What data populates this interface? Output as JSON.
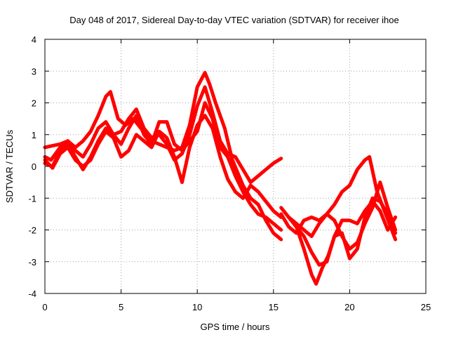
{
  "chart_data": {
    "type": "line",
    "title": "Day 048 of 2017, Sidereal Day-to-day VTEC variation (SDTVAR) for receiver ihoe",
    "xlabel": "GPS time / hours",
    "ylabel": "SDTVAR / TECUs",
    "xlim": [
      0,
      25
    ],
    "ylim": [
      -4,
      4
    ],
    "xticks": [
      "0",
      "5",
      "10",
      "15",
      "20",
      "25"
    ],
    "yticks": [
      "4",
      "3",
      "2",
      "1",
      "0",
      "-1",
      "-2",
      "-3",
      "-4"
    ],
    "grid": true,
    "color": "#ff0000",
    "series": [
      {
        "x": [
          0,
          0.5,
          1,
          1.5,
          2,
          2.5,
          3,
          3.5,
          4,
          4.3,
          4.8,
          5.3,
          5.8,
          6.3,
          7,
          7.5,
          8,
          8.5,
          9,
          9.5,
          10,
          10.5,
          10.8,
          11.2,
          11.8,
          12.3,
          13,
          13.5,
          14,
          14.5,
          15,
          15.5
        ],
        "y": [
          0.6,
          0.65,
          0.7,
          0.8,
          0.6,
          0.8,
          1.1,
          1.6,
          2.2,
          2.35,
          1.5,
          1.3,
          1.5,
          1.2,
          0.8,
          0.7,
          0.6,
          0.5,
          0.6,
          1.3,
          2.5,
          2.95,
          2.6,
          2.0,
          1.2,
          0.2,
          -0.6,
          -1.0,
          -1.2,
          -1.7,
          -2.1,
          -2.3
        ]
      },
      {
        "x": [
          0,
          0.4,
          1,
          1.5,
          2,
          2.5,
          3,
          3.5,
          4,
          4.5,
          5,
          5.5,
          6,
          6.5,
          7,
          7.5,
          8,
          8.5,
          9,
          9.5,
          10,
          10.5,
          11,
          11.5,
          12,
          12.5,
          13,
          13.5,
          14,
          14.5,
          15,
          15.5
        ],
        "y": [
          0.3,
          0.2,
          0.6,
          0.8,
          0.5,
          0.3,
          0.7,
          1.2,
          1.4,
          1.0,
          1.1,
          1.5,
          1.8,
          1.2,
          0.9,
          1.0,
          0.7,
          0.2,
          0.4,
          1.0,
          1.9,
          2.5,
          1.7,
          0.8,
          0.4,
          0.3,
          -0.1,
          -0.5,
          -0.3,
          -0.1,
          0.1,
          0.25
        ]
      },
      {
        "x": [
          0,
          0.5,
          1,
          1.5,
          2,
          2.5,
          3,
          3.5,
          4,
          4.5,
          5,
          5.5,
          6,
          6.5,
          7,
          7.5,
          8,
          8.5,
          9,
          9.5,
          10,
          10.5,
          11,
          11.5,
          12,
          12.5,
          13,
          13.5,
          14,
          14.5,
          15,
          15.5
        ],
        "y": [
          0.1,
          0.0,
          0.5,
          0.7,
          0.3,
          -0.1,
          0.3,
          0.8,
          1.2,
          1.0,
          0.7,
          1.2,
          1.6,
          1.0,
          0.7,
          1.4,
          1.4,
          0.7,
          0.5,
          0.8,
          1.1,
          2.0,
          1.5,
          0.6,
          0.3,
          -0.3,
          -0.8,
          -1.2,
          -1.5,
          -1.6,
          -1.8,
          -2.0
        ]
      },
      {
        "x": [
          0,
          0.5,
          1,
          1.5,
          2,
          2.5,
          3,
          3.5,
          4,
          4.5,
          5,
          5.5,
          6,
          6.5,
          7,
          7.5,
          8,
          8.5,
          9,
          9.5,
          10,
          10.5,
          11,
          11.5,
          12,
          12.5,
          13,
          13.5,
          14,
          14.5,
          15,
          15.5
        ],
        "y": [
          0.2,
          -0.05,
          0.4,
          0.6,
          0.2,
          0.0,
          0.2,
          0.7,
          1.1,
          0.9,
          0.3,
          0.5,
          1.0,
          0.8,
          0.6,
          1.1,
          0.9,
          0.3,
          -0.5,
          0.6,
          1.3,
          1.6,
          1.2,
          0.3,
          -0.4,
          -0.8,
          -1.0,
          -0.6,
          -0.8,
          -1.1,
          -1.4,
          -1.6
        ]
      },
      {
        "x": [
          15.5,
          16,
          16.5,
          17,
          17.5,
          17.8,
          18.2,
          18.6,
          19,
          19.5,
          20,
          20.5,
          21,
          21.5,
          22,
          22.5,
          23
        ],
        "y": [
          -1.3,
          -1.6,
          -1.9,
          -2.6,
          -3.4,
          -3.7,
          -3.2,
          -2.8,
          -2.2,
          -2.1,
          -2.9,
          -2.6,
          -1.6,
          -1.0,
          -1.1,
          -1.5,
          -2.1
        ]
      },
      {
        "x": [
          15.5,
          16,
          16.5,
          17,
          17.5,
          18,
          18.5,
          19,
          19.5,
          20,
          20.5,
          21,
          21.3,
          21.8,
          22.2,
          22.6,
          23
        ],
        "y": [
          -1.5,
          -1.9,
          -2.1,
          -1.7,
          -1.6,
          -1.7,
          -1.5,
          -1.2,
          -0.8,
          -0.6,
          -0.1,
          0.2,
          0.3,
          -0.8,
          -1.3,
          -1.8,
          -2.3
        ]
      },
      {
        "x": [
          16,
          16.5,
          17,
          17.5,
          18,
          18.5,
          19,
          19.5,
          20,
          20.5,
          21,
          21.5,
          22,
          22.5,
          23
        ],
        "y": [
          -1.6,
          -1.8,
          -2.0,
          -2.2,
          -1.8,
          -1.5,
          -1.7,
          -2.2,
          -2.6,
          -2.4,
          -1.8,
          -1.3,
          -0.5,
          -1.3,
          -2.0
        ]
      },
      {
        "x": [
          16.5,
          17,
          17.5,
          18,
          18.5,
          19,
          19.5,
          20,
          20.5,
          21,
          21.5,
          22,
          22.5,
          23
        ],
        "y": [
          -1.9,
          -2.2,
          -2.7,
          -3.1,
          -3.0,
          -2.2,
          -1.7,
          -1.7,
          -1.8,
          -1.4,
          -1.1,
          -1.4,
          -2.0,
          -1.6
        ]
      }
    ]
  }
}
